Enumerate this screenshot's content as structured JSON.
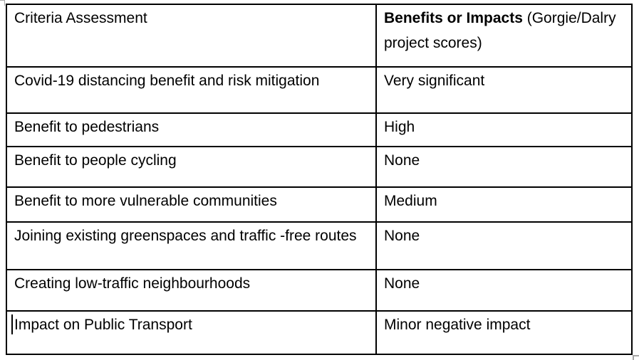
{
  "document": {
    "table": {
      "header": {
        "criteria": "Criteria Assessment",
        "benefits_bold": "Benefits or Impacts",
        "benefits_note": " (Gorgie/Dalry project scores)"
      },
      "rows": [
        {
          "criteria": "Covid-19 distancing benefit and risk mitigation",
          "score": "Very significant"
        },
        {
          "criteria": "Benefit to pedestrians",
          "score": "High"
        },
        {
          "criteria": "Benefit to people cycling",
          "score": "None"
        },
        {
          "criteria": "Benefit to more vulnerable communities",
          "score": "Medium"
        },
        {
          "criteria": "Joining existing greenspaces and traffic -free routes",
          "score": "None"
        },
        {
          "criteria": "Creating low-traffic neighbourhoods",
          "score": "None"
        },
        {
          "criteria": "Impact on Public Transport",
          "score": "Minor negative impact"
        }
      ]
    },
    "colors": {
      "border": "#000000",
      "text": "#000000",
      "background": "#ffffff",
      "handle_gray": "#a6a6a6"
    }
  }
}
